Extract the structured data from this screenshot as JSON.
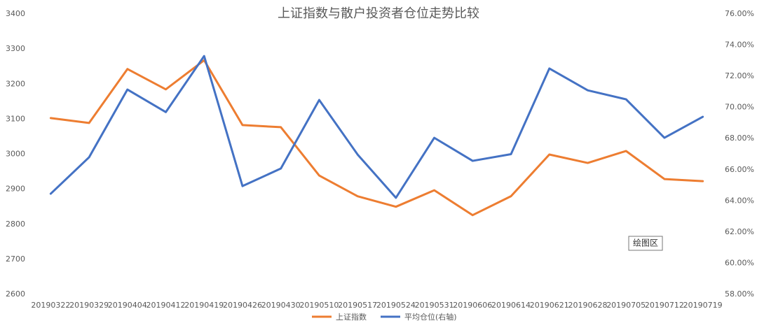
{
  "chart_data": {
    "type": "line",
    "title": "上证指数与散户投资者仓位走势比较",
    "categories": [
      "20190322",
      "20190329",
      "20190404",
      "20190412",
      "20190419",
      "20190426",
      "20190430",
      "20190510",
      "20190517",
      "20190524",
      "20190531",
      "20190606",
      "20190614",
      "20190621",
      "20190628",
      "20190705",
      "20190712",
      "20190719"
    ],
    "series": [
      {
        "name": "上证指数",
        "color": "#ED7D31",
        "values": [
          3103,
          3089,
          3243,
          3185,
          3268,
          3083,
          3077,
          2939,
          2880,
          2850,
          2897,
          2826,
          2880,
          2999,
          2975,
          3009,
          2929,
          2923
        ]
      },
      {
        "name": "平均仓位(右轴)",
        "color": "#4472C4",
        "axis": "y2",
        "values": [
          64.46,
          66.8,
          71.15,
          69.7,
          73.3,
          64.95,
          66.08,
          70.48,
          66.98,
          64.2,
          68.05,
          66.57,
          67.0,
          72.5,
          71.1,
          70.52,
          68.05,
          69.4
        ]
      }
    ],
    "ylim": [
      2600,
      3400
    ],
    "yticks": [
      2600,
      2700,
      2800,
      2900,
      3000,
      3100,
      3200,
      3300,
      3400
    ],
    "y2lim": [
      58,
      76
    ],
    "y2ticks": [
      {
        "value": 58,
        "label": "58.00%"
      },
      {
        "value": 60,
        "label": "60.00%"
      },
      {
        "value": 62,
        "label": "62.00%"
      },
      {
        "value": 64,
        "label": "64.00%"
      },
      {
        "value": 66,
        "label": "66.00%"
      },
      {
        "value": 68,
        "label": "68.00%"
      },
      {
        "value": 70,
        "label": "70.00%"
      },
      {
        "value": 72,
        "label": "72.00%"
      },
      {
        "value": 74,
        "label": "74.00%"
      },
      {
        "value": 76,
        "label": "76.00%"
      }
    ],
    "grid": false,
    "legend": "bottom",
    "annotation": "绘图区"
  }
}
